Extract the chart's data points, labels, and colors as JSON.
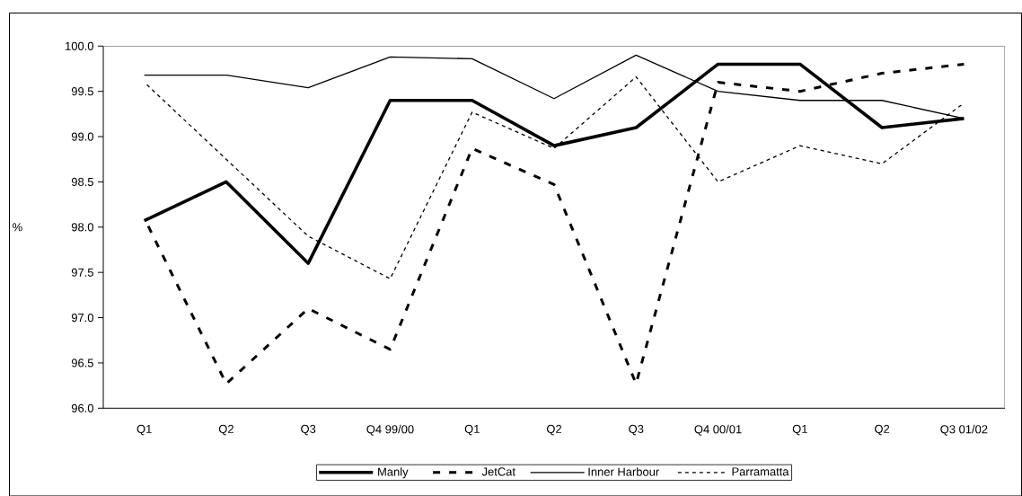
{
  "chart_data": {
    "type": "line",
    "ylabel": "%",
    "categories": [
      "Q1",
      "Q2",
      "Q3",
      "Q4 99/00",
      "Q1",
      "Q2",
      "Q3",
      "Q4 00/01",
      "Q1",
      "Q2",
      "Q3 01/02"
    ],
    "series": [
      {
        "name": "Manly",
        "color": "#000000",
        "line_style": "solid",
        "values": [
          98.07,
          98.5,
          97.6,
          99.4,
          99.4,
          98.9,
          99.1,
          99.8,
          99.8,
          99.1,
          99.2
        ]
      },
      {
        "name": "JetCat",
        "color": "#000000",
        "line_style": "dashed",
        "values": [
          98.1,
          96.27,
          97.1,
          96.65,
          98.87,
          98.47,
          96.27,
          99.6,
          99.5,
          99.7,
          99.8
        ]
      },
      {
        "name": "Inner Harbour",
        "color": "#000000",
        "line_style": "solid",
        "values": [
          99.68,
          99.68,
          99.54,
          99.88,
          99.86,
          99.42,
          99.9,
          99.5,
          99.4,
          99.4,
          99.2
        ]
      },
      {
        "name": "Parramatta",
        "color": "#000000",
        "line_style": "dotted",
        "values": [
          99.6,
          98.75,
          97.9,
          97.43,
          99.27,
          98.87,
          99.66,
          98.5,
          98.9,
          98.7,
          99.37
        ]
      }
    ],
    "ylim": [
      96,
      100
    ],
    "yticks": [
      {
        "value": 96,
        "label": "96.0"
      },
      {
        "value": 96.5,
        "label": "96.5"
      },
      {
        "value": 97,
        "label": "97.0"
      },
      {
        "value": 97.5,
        "label": "97.5"
      },
      {
        "value": 98,
        "label": "98.0"
      },
      {
        "value": 98.5,
        "label": "98.5"
      },
      {
        "value": 99,
        "label": "99.0"
      },
      {
        "value": 99.5,
        "label": "99.5"
      },
      {
        "value": 100,
        "label": "100.0"
      }
    ],
    "grid": false,
    "legend": "bottom",
    "marker": "none"
  }
}
